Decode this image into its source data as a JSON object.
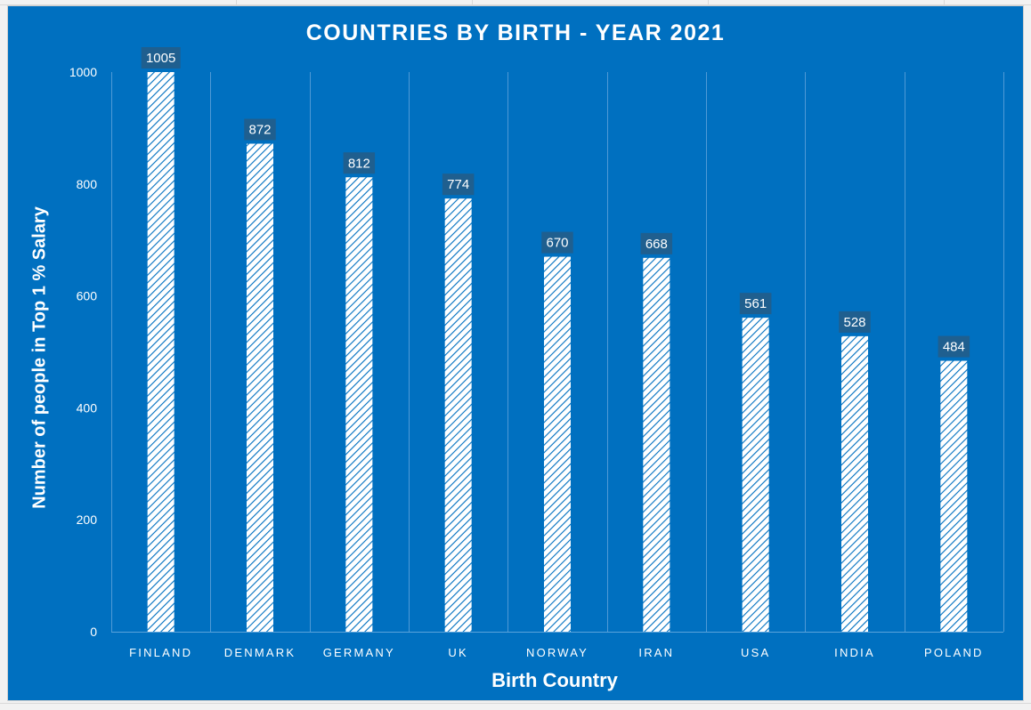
{
  "chart_data": {
    "type": "bar",
    "title": "COUNTRIES BY BIRTH - YEAR 2021",
    "xlabel": "Birth Country",
    "ylabel": "Number of people in Top 1 % Salary",
    "categories": [
      "FINLAND",
      "DENMARK",
      "GERMANY",
      "UK",
      "NORWAY",
      "IRAN",
      "USA",
      "INDIA",
      "POLAND"
    ],
    "values": [
      1005,
      872,
      812,
      774,
      670,
      668,
      561,
      528,
      484
    ],
    "ylim": [
      0,
      1000
    ],
    "yticks": [
      0,
      200,
      400,
      600,
      800,
      1000
    ],
    "grid": "vertical category separators",
    "legend": "none",
    "colors": {
      "background": "#0070c0",
      "bar_fill": "#ffffff",
      "bar_hatch": "#0070c0",
      "label_box": "#1f5f8f",
      "text": "#ffffff"
    }
  }
}
